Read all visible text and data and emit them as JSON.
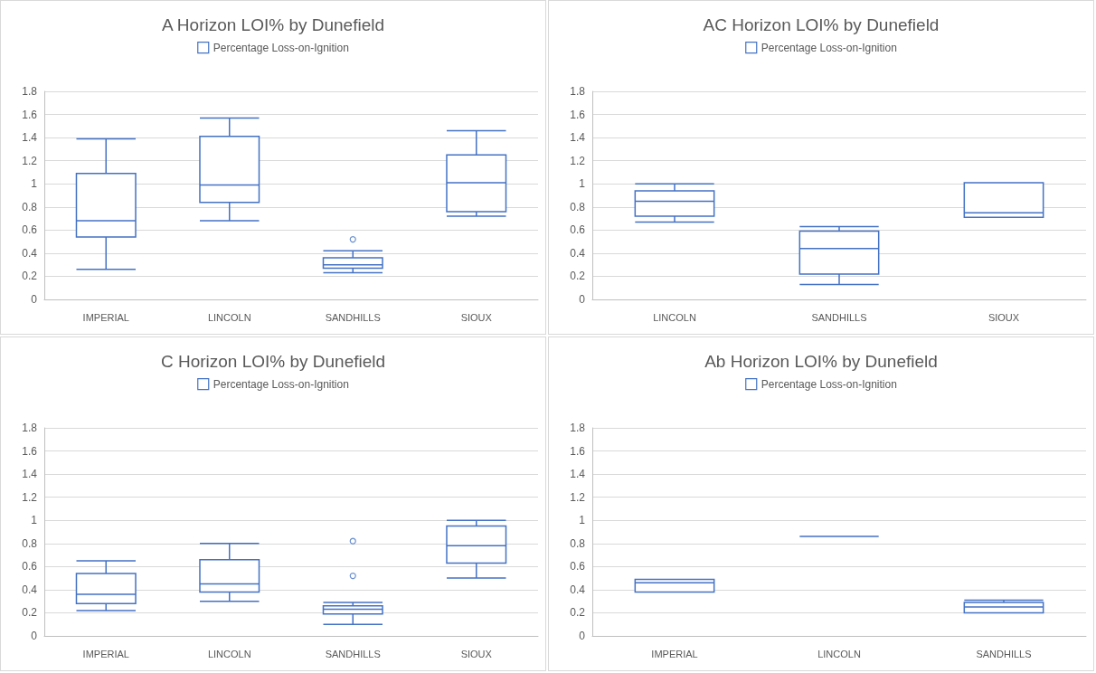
{
  "chart_data": [
    {
      "type": "box",
      "title": "A Horizon LOI% by Dunefield",
      "categories": [
        "IMPERIAL",
        "LINCOLN",
        "SANDHILLS",
        "SIOUX"
      ],
      "series": [
        {
          "name": "Percentage Loss-on-Ignition",
          "color": "#4472c4",
          "boxes": [
            {
              "low": 0.26,
              "q1": 0.54,
              "median": 0.68,
              "q3": 1.09,
              "high": 1.39
            },
            {
              "low": 0.68,
              "q1": 0.84,
              "median": 0.99,
              "q3": 1.41,
              "high": 1.57
            },
            {
              "low": 0.23,
              "q1": 0.27,
              "median": 0.3,
              "q3": 0.36,
              "high": 0.42,
              "outliers": [
                0.52
              ]
            },
            {
              "low": 0.72,
              "q1": 0.76,
              "median": 1.01,
              "q3": 1.25,
              "high": 1.46
            }
          ]
        }
      ],
      "ylim": [
        0,
        1.8
      ],
      "yticks": [
        0,
        0.2,
        0.4,
        0.6,
        0.8,
        1,
        1.2,
        1.4,
        1.6,
        1.8
      ],
      "grid": "y",
      "legend": "top"
    },
    {
      "type": "box",
      "title": "AC Horizon LOI% by Dunefield",
      "categories": [
        "LINCOLN",
        "SANDHILLS",
        "SIOUX"
      ],
      "series": [
        {
          "name": "Percentage Loss-on-Ignition",
          "color": "#4472c4",
          "boxes": [
            {
              "low": 0.67,
              "q1": 0.72,
              "median": 0.85,
              "q3": 0.94,
              "high": 1.0
            },
            {
              "low": 0.13,
              "q1": 0.22,
              "median": 0.44,
              "q3": 0.59,
              "high": 0.63
            },
            {
              "low": 0.71,
              "q1": 0.71,
              "median": 0.75,
              "q3": 1.01,
              "high": 1.01
            }
          ]
        }
      ],
      "ylim": [
        0,
        1.8
      ],
      "yticks": [
        0,
        0.2,
        0.4,
        0.6,
        0.8,
        1,
        1.2,
        1.4,
        1.6,
        1.8
      ],
      "grid": "y",
      "legend": "top"
    },
    {
      "type": "box",
      "title": "C Horizon LOI% by Dunefield",
      "categories": [
        "IMPERIAL",
        "LINCOLN",
        "SANDHILLS",
        "SIOUX"
      ],
      "series": [
        {
          "name": "Percentage Loss-on-Ignition",
          "color": "#4472c4",
          "boxes": [
            {
              "low": 0.22,
              "q1": 0.28,
              "median": 0.36,
              "q3": 0.54,
              "high": 0.65
            },
            {
              "low": 0.3,
              "q1": 0.38,
              "median": 0.45,
              "q3": 0.66,
              "high": 0.8
            },
            {
              "low": 0.1,
              "q1": 0.19,
              "median": 0.23,
              "q3": 0.26,
              "high": 0.29,
              "outliers": [
                0.52,
                0.82
              ]
            },
            {
              "low": 0.5,
              "q1": 0.63,
              "median": 0.78,
              "q3": 0.95,
              "high": 1.0
            }
          ]
        }
      ],
      "ylim": [
        0,
        1.8
      ],
      "yticks": [
        0,
        0.2,
        0.4,
        0.6,
        0.8,
        1,
        1.2,
        1.4,
        1.6,
        1.8
      ],
      "grid": "y",
      "legend": "top"
    },
    {
      "type": "box",
      "title": "Ab Horizon LOI% by Dunefield",
      "categories": [
        "IMPERIAL",
        "LINCOLN",
        "SANDHILLS"
      ],
      "series": [
        {
          "name": "Percentage Loss-on-Ignition",
          "color": "#4472c4",
          "boxes": [
            {
              "low": 0.38,
              "q1": 0.38,
              "median": 0.46,
              "q3": 0.49,
              "high": 0.49
            },
            {
              "low": 0.86,
              "q1": 0.86,
              "median": 0.86,
              "q3": 0.86,
              "high": 0.86
            },
            {
              "low": 0.2,
              "q1": 0.2,
              "median": 0.25,
              "q3": 0.29,
              "high": 0.31
            }
          ]
        }
      ],
      "ylim": [
        0,
        1.8
      ],
      "yticks": [
        0,
        0.2,
        0.4,
        0.6,
        0.8,
        1,
        1.2,
        1.4,
        1.6,
        1.8
      ],
      "grid": "y",
      "legend": "top"
    }
  ]
}
